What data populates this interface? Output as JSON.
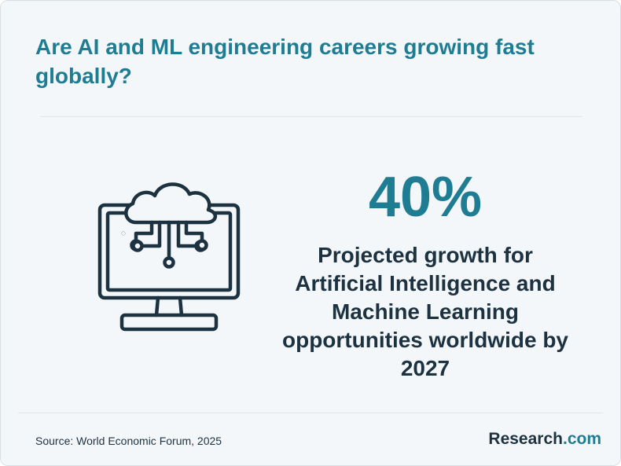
{
  "header": {
    "title": "Are AI and ML engineering careers growing fast globally?"
  },
  "stat": {
    "value": "40%",
    "description": "Projected growth for Artificial Intelligence and Machine Learning opportunities worldwide by 2027"
  },
  "footer": {
    "source": "Source: World Economic Forum, 2025",
    "brand_name": "Research",
    "brand_dot": ".",
    "brand_tld": "com"
  },
  "icons": {
    "illustration": "cloud-computer-icon"
  },
  "colors": {
    "accent": "#1e7c93",
    "text_dark": "#1d3240",
    "background": "#f4f7f9",
    "divider": "#dfe5e8"
  }
}
